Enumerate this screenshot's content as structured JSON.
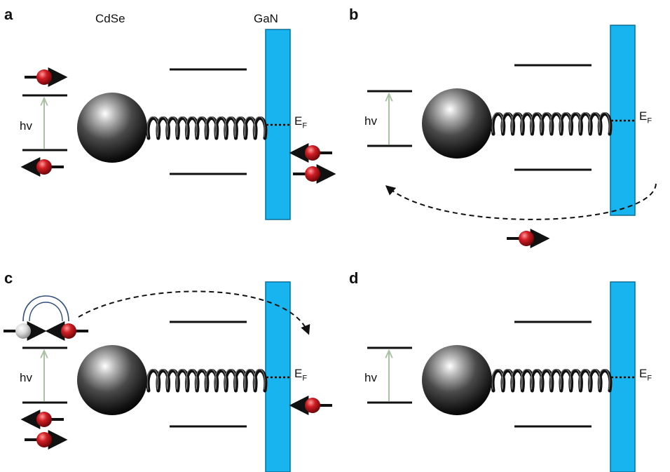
{
  "labels": {
    "cdse": "CdSe",
    "gan": "GaN",
    "hv": "hv",
    "ef_main": "E",
    "ef_sub": "F"
  },
  "panels": [
    {
      "letter": "a"
    },
    {
      "letter": "b"
    },
    {
      "letter": "c"
    },
    {
      "letter": "d"
    }
  ],
  "colors": {
    "gan_block": "#17b4ef",
    "electron": "#c4161c",
    "hole": "#c9c9c9",
    "arrow": "#111111",
    "excitation_arrow": "#a9c2a4",
    "exchange_arc": "#2f4f7f"
  }
}
